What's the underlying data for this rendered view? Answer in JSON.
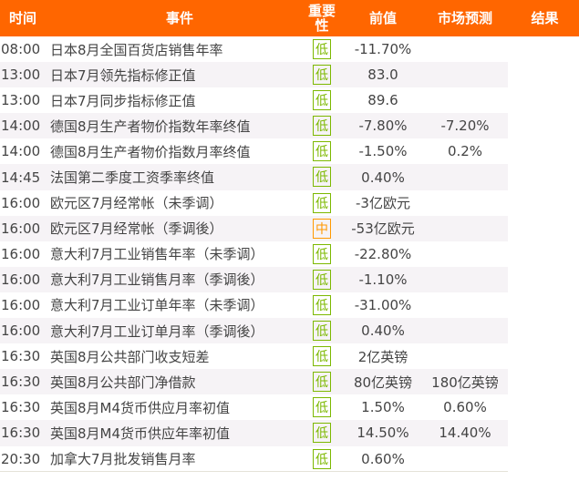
{
  "header": {
    "time": "时间",
    "event": "事件",
    "importance": "重要性",
    "previous": "前值",
    "forecast": "市场预测",
    "result": "结果"
  },
  "colors": {
    "header": "#ff6600",
    "low": "#7cb800",
    "medium": "#ff9900"
  },
  "rows": [
    {
      "time": "08:00",
      "event": "日本8月全国百货店销售年率",
      "importance": "低",
      "previous": "-11.70%",
      "forecast": "",
      "result": ""
    },
    {
      "time": "13:00",
      "event": "日本7月领先指标修正值",
      "importance": "低",
      "previous": "83.0",
      "forecast": "",
      "result": ""
    },
    {
      "time": "13:00",
      "event": "日本7月同步指标修正值",
      "importance": "低",
      "previous": "89.6",
      "forecast": "",
      "result": ""
    },
    {
      "time": "14:00",
      "event": "德国8月生产者物价指数年率终值",
      "importance": "低",
      "previous": "-7.80%",
      "forecast": "-7.20%",
      "result": ""
    },
    {
      "time": "14:00",
      "event": "德国8月生产者物价指数月率终值",
      "importance": "低",
      "previous": "-1.50%",
      "forecast": "0.2%",
      "result": ""
    },
    {
      "time": "14:45",
      "event": "法国第二季度工资季率终值",
      "importance": "低",
      "previous": "0.40%",
      "forecast": "",
      "result": ""
    },
    {
      "time": "16:00",
      "event": "欧元区7月经常帐（未季调）",
      "importance": "低",
      "previous": "-3亿欧元",
      "forecast": "",
      "result": ""
    },
    {
      "time": "16:00",
      "event": "欧元区7月经常帐（季调後）",
      "importance": "中",
      "previous": "-53亿欧元",
      "forecast": "",
      "result": ""
    },
    {
      "time": "16:00",
      "event": "意大利7月工业销售年率（未季调）",
      "importance": "低",
      "previous": "-22.80%",
      "forecast": "",
      "result": ""
    },
    {
      "time": "16:00",
      "event": "意大利7月工业销售月率（季调後）",
      "importance": "低",
      "previous": "-1.10%",
      "forecast": "",
      "result": ""
    },
    {
      "time": "16:00",
      "event": "意大利7月工业订单年率（未季调）",
      "importance": "低",
      "previous": "-31.00%",
      "forecast": "",
      "result": ""
    },
    {
      "time": "16:00",
      "event": "意大利7月工业订单月率（季调後）",
      "importance": "低",
      "previous": "0.40%",
      "forecast": "",
      "result": ""
    },
    {
      "time": "16:30",
      "event": "英国8月公共部门收支短差",
      "importance": "低",
      "previous": "2亿英镑",
      "forecast": "",
      "result": ""
    },
    {
      "time": "16:30",
      "event": "英国8月公共部门净借款",
      "importance": "低",
      "previous": "80亿英镑",
      "forecast": "180亿英镑",
      "result": ""
    },
    {
      "time": "16:30",
      "event": "英国8月M4货币供应月率初值",
      "importance": "低",
      "previous": "1.50%",
      "forecast": "0.60%",
      "result": ""
    },
    {
      "time": "16:30",
      "event": "英国8月M4货币供应年率初值",
      "importance": "低",
      "previous": "14.50%",
      "forecast": "14.40%",
      "result": ""
    },
    {
      "time": "20:30",
      "event": "加拿大7月批发销售月率",
      "importance": "低",
      "previous": "0.60%",
      "forecast": "",
      "result": ""
    }
  ]
}
